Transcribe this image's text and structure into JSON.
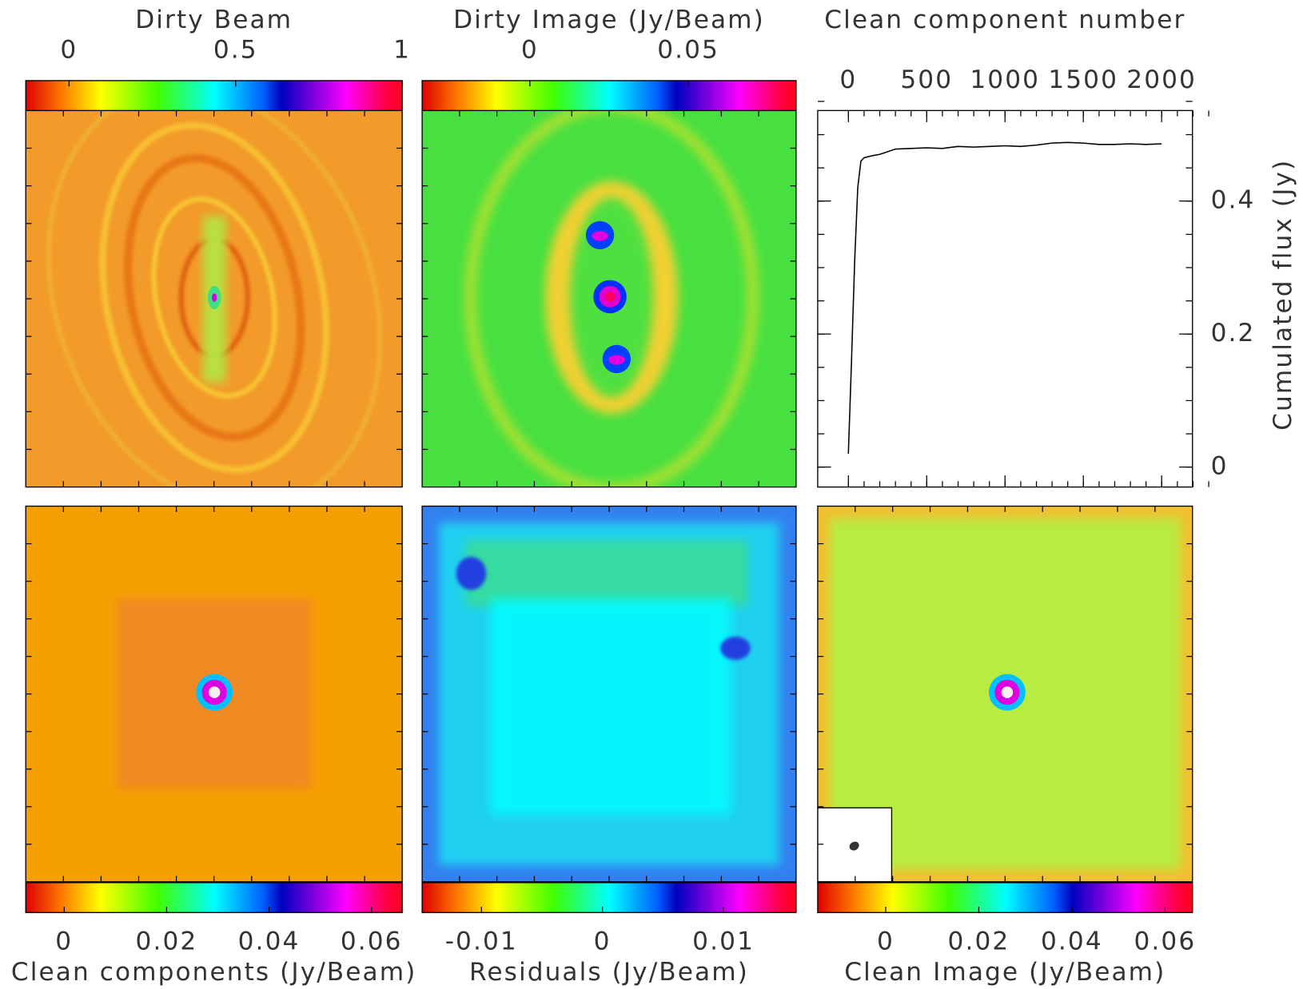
{
  "chart_data": [
    {
      "type": "image",
      "title": "Dirty Beam",
      "colorbar": "top",
      "clim": [
        -0.13,
        1
      ],
      "cticks": [
        0,
        0.5,
        1
      ]
    },
    {
      "type": "image",
      "title": "Dirty Image (Jy/Beam)",
      "colorbar": "top",
      "clim": [
        -0.034,
        0.084
      ],
      "cticks": [
        0,
        0.05
      ]
    },
    {
      "type": "line",
      "xlabel": "Clean component number",
      "ylabel": "Cumulated flux (Jy)",
      "color": "#000000",
      "x": [
        0,
        20,
        40,
        60,
        80,
        100,
        150,
        200,
        300,
        400,
        500,
        600,
        700,
        800,
        900,
        1000,
        1100,
        1200,
        1300,
        1400,
        1500,
        1600,
        1700,
        1800,
        1900,
        2000
      ],
      "values": [
        0.02,
        0.16,
        0.31,
        0.42,
        0.46,
        0.465,
        0.468,
        0.47,
        0.478,
        0.479,
        0.48,
        0.479,
        0.482,
        0.481,
        0.482,
        0.483,
        0.482,
        0.484,
        0.487,
        0.488,
        0.487,
        0.485,
        0.485,
        0.486,
        0.485,
        0.486
      ],
      "xlim": [
        -196,
        2197
      ],
      "ylim": [
        -0.03,
        0.536
      ],
      "xticks": [
        0,
        500,
        1000,
        1500,
        2000
      ],
      "yticks": [
        0,
        0.2,
        0.4
      ]
    },
    {
      "type": "image",
      "title": "Clean components (Jy/Beam)",
      "colorbar": "bottom",
      "clim": [
        -0.0075,
        0.066
      ],
      "cticks": [
        0,
        0.02,
        0.04,
        0.06
      ]
    },
    {
      "type": "image",
      "title": "Residuals (Jy/Beam)",
      "colorbar": "bottom",
      "clim": [
        -0.0149,
        0.016
      ],
      "cticks": [
        -0.01,
        0,
        0.01
      ]
    },
    {
      "type": "image",
      "title": "Clean Image (Jy/Beam)",
      "colorbar": "bottom",
      "clim": [
        -0.0146,
        0.0659
      ],
      "cticks": [
        0,
        0.02,
        0.04,
        0.06
      ]
    }
  ]
}
